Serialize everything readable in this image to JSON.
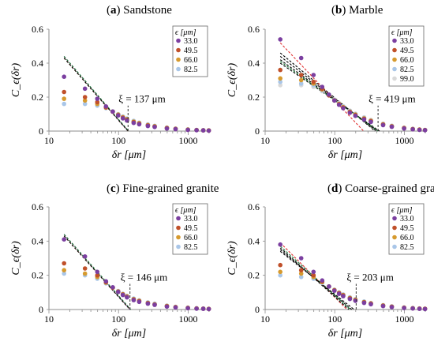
{
  "chart_data": [
    {
      "type": "scatter",
      "panel_label": "a",
      "title": "Sandstone",
      "xlabel": "δr [μm]",
      "ylabel": "C_ϵ(δr)",
      "x_scale": "log",
      "xlim": [
        10,
        2000
      ],
      "ylim": [
        0,
        0.6
      ],
      "x_ticks": [
        "10",
        "100",
        "1000"
      ],
      "y_ticks": [
        "0",
        "0.2",
        "0.4",
        "0.6"
      ],
      "legend_title": "ϵ [μm]",
      "legend_position": "top-right",
      "grid": false,
      "xi_label": "ξ = 137 μm",
      "xi": 137,
      "series": [
        {
          "name": "33.0",
          "color": "#7B3FA0",
          "x": [
            16.5,
            33,
            49.5,
            66,
            82.5,
            99,
            115.5,
            132,
            165,
            198,
            264,
            330,
            495,
            660,
            990,
            1320,
            1650,
            1980
          ],
          "y": [
            0.32,
            0.25,
            0.19,
            0.145,
            0.115,
            0.092,
            0.075,
            0.062,
            0.048,
            0.04,
            0.03,
            0.024,
            0.015,
            0.011,
            0.007,
            0.005,
            0.004,
            0.003
          ]
        },
        {
          "name": "49.5",
          "color": "#C0502A",
          "x": [
            16.5,
            33,
            49.5,
            66,
            82.5,
            99,
            115.5,
            132,
            165,
            198,
            264,
            330,
            495,
            660,
            990,
            1320,
            1650,
            1980
          ],
          "y": [
            0.23,
            0.2,
            0.17,
            0.14,
            0.114,
            0.094,
            0.078,
            0.066,
            0.052,
            0.043,
            0.033,
            0.026,
            0.017,
            0.012,
            0.008,
            0.006,
            0.004,
            0.003
          ]
        },
        {
          "name": "66.0",
          "color": "#D69A2E",
          "x": [
            16.5,
            33,
            49.5,
            66,
            82.5,
            99,
            115.5,
            132,
            165,
            198,
            264,
            330,
            495,
            660,
            990,
            1320,
            1650,
            1980
          ],
          "y": [
            0.19,
            0.18,
            0.16,
            0.138,
            0.115,
            0.097,
            0.082,
            0.07,
            0.056,
            0.047,
            0.036,
            0.029,
            0.019,
            0.014,
            0.009,
            0.006,
            0.005,
            0.004
          ]
        },
        {
          "name": "82.5",
          "color": "#A9C6E8",
          "x": [
            16.5,
            33,
            49.5,
            66,
            82.5,
            99,
            115.5,
            132,
            165,
            198,
            264,
            330,
            495,
            660,
            990,
            1320,
            1650,
            1980
          ],
          "y": [
            0.16,
            0.16,
            0.15,
            0.135,
            0.116,
            0.1,
            0.086,
            0.074,
            0.06,
            0.05,
            0.039,
            0.031,
            0.021,
            0.015,
            0.01,
            0.007,
            0.005,
            0.004
          ]
        }
      ],
      "fit_lines": [
        {
          "color": "#7B3FA0",
          "x": [
            16.5,
            137
          ],
          "y": [
            0.44,
            0.0
          ]
        },
        {
          "color": "#C0502A",
          "x": [
            16.5,
            137
          ],
          "y": [
            0.43,
            0.0
          ]
        },
        {
          "color": "#1F7A3A",
          "x": [
            16.5,
            140
          ],
          "y": [
            0.44,
            0.0
          ]
        },
        {
          "color": "#000000",
          "x": [
            16.5,
            137
          ],
          "y": [
            0.43,
            0.0
          ]
        }
      ]
    },
    {
      "type": "scatter",
      "panel_label": "b",
      "title": "Marble",
      "xlabel": "δr [μm]",
      "ylabel": "C_ϵ(δr)",
      "x_scale": "log",
      "xlim": [
        10,
        2000
      ],
      "ylim": [
        0,
        0.6
      ],
      "x_ticks": [
        "10",
        "100",
        "1000"
      ],
      "y_ticks": [
        "0",
        "0.2",
        "0.4",
        "0.6"
      ],
      "legend_title": "ϵ [μm]",
      "legend_position": "top-right",
      "grid": false,
      "xi_label": "ξ = 419 μm",
      "xi": 419,
      "series": [
        {
          "name": "33.0",
          "color": "#7B3FA0",
          "x": [
            16.5,
            33,
            49.5,
            66,
            82.5,
            99,
            115.5,
            132,
            165,
            198,
            264,
            330,
            495,
            660,
            990,
            1320,
            1650,
            1980
          ],
          "y": [
            0.54,
            0.43,
            0.33,
            0.26,
            0.215,
            0.18,
            0.155,
            0.135,
            0.108,
            0.09,
            0.068,
            0.054,
            0.035,
            0.025,
            0.015,
            0.01,
            0.007,
            0.005
          ]
        },
        {
          "name": "49.5",
          "color": "#C0502A",
          "x": [
            16.5,
            33,
            49.5,
            66,
            82.5,
            99,
            115.5,
            132,
            165,
            198,
            264,
            330,
            495,
            660,
            990,
            1320,
            1650,
            1980
          ],
          "y": [
            0.36,
            0.33,
            0.29,
            0.25,
            0.21,
            0.18,
            0.157,
            0.138,
            0.112,
            0.094,
            0.072,
            0.058,
            0.038,
            0.027,
            0.017,
            0.011,
            0.008,
            0.006
          ]
        },
        {
          "name": "66.0",
          "color": "#D69A2E",
          "x": [
            16.5,
            33,
            49.5,
            66,
            82.5,
            99,
            115.5,
            132,
            165,
            198,
            264,
            330,
            495,
            660,
            990,
            1320,
            1650,
            1980
          ],
          "y": [
            0.31,
            0.3,
            0.28,
            0.245,
            0.21,
            0.182,
            0.16,
            0.141,
            0.115,
            0.097,
            0.075,
            0.061,
            0.04,
            0.029,
            0.018,
            0.012,
            0.009,
            0.006
          ]
        },
        {
          "name": "82.5",
          "color": "#A9C6E8",
          "x": [
            16.5,
            33,
            49.5,
            66,
            82.5,
            99,
            115.5,
            132,
            165,
            198,
            264,
            330,
            495,
            660,
            990,
            1320,
            1650,
            1980
          ],
          "y": [
            0.29,
            0.28,
            0.27,
            0.24,
            0.21,
            0.184,
            0.162,
            0.144,
            0.118,
            0.1,
            0.078,
            0.063,
            0.042,
            0.03,
            0.019,
            0.013,
            0.009,
            0.007
          ]
        },
        {
          "name": "99.0",
          "color": "#D9D9D9",
          "x": [
            16.5,
            33,
            49.5,
            66,
            82.5,
            99,
            115.5,
            132,
            165,
            198,
            264,
            330,
            495,
            660,
            990,
            1320,
            1650,
            1980
          ],
          "y": [
            0.27,
            0.27,
            0.26,
            0.235,
            0.21,
            0.186,
            0.165,
            0.147,
            0.121,
            0.103,
            0.081,
            0.066,
            0.044,
            0.032,
            0.02,
            0.014,
            0.01,
            0.007
          ]
        }
      ],
      "fit_lines": [
        {
          "color": "#E03030",
          "x": [
            16.5,
            260
          ],
          "y": [
            0.52,
            0.0
          ]
        },
        {
          "color": "#000000",
          "x": [
            16.5,
            380
          ],
          "y": [
            0.46,
            0.0
          ]
        },
        {
          "color": "#000000",
          "x": [
            16.5,
            400
          ],
          "y": [
            0.44,
            0.0
          ]
        },
        {
          "color": "#000000",
          "x": [
            16.5,
            420
          ],
          "y": [
            0.42,
            0.0
          ]
        },
        {
          "color": "#000000",
          "x": [
            16.5,
            440
          ],
          "y": [
            0.4,
            0.0
          ]
        },
        {
          "color": "#1F7A3A",
          "x": [
            16.5,
            419
          ],
          "y": [
            0.41,
            0.0
          ]
        }
      ]
    },
    {
      "type": "scatter",
      "panel_label": "c",
      "title": "Fine-grained granite",
      "xlabel": "δr [μm]",
      "ylabel": "C_ϵ(δr)",
      "x_scale": "log",
      "xlim": [
        10,
        2000
      ],
      "ylim": [
        0,
        0.6
      ],
      "x_ticks": [
        "10",
        "100",
        "1000"
      ],
      "y_ticks": [
        "0",
        "0.2",
        "0.4",
        "0.6"
      ],
      "legend_title": "ϵ [μm]",
      "legend_position": "top-right",
      "grid": false,
      "xi_label": "ξ = 146 μm",
      "xi": 146,
      "series": [
        {
          "name": "33.0",
          "color": "#7B3FA0",
          "x": [
            16.5,
            33,
            49.5,
            66,
            82.5,
            99,
            115.5,
            132,
            165,
            198,
            264,
            330,
            495,
            660,
            990,
            1320,
            1650,
            1980
          ],
          "y": [
            0.41,
            0.31,
            0.22,
            0.165,
            0.13,
            0.103,
            0.085,
            0.071,
            0.055,
            0.045,
            0.034,
            0.027,
            0.017,
            0.012,
            0.008,
            0.005,
            0.004,
            0.003
          ]
        },
        {
          "name": "49.5",
          "color": "#C0502A",
          "x": [
            16.5,
            33,
            49.5,
            66,
            82.5,
            99,
            115.5,
            132,
            165,
            198,
            264,
            330,
            495,
            660,
            990,
            1320,
            1650,
            1980
          ],
          "y": [
            0.27,
            0.24,
            0.2,
            0.16,
            0.128,
            0.104,
            0.087,
            0.074,
            0.058,
            0.048,
            0.037,
            0.029,
            0.019,
            0.014,
            0.009,
            0.006,
            0.005,
            0.003
          ]
        },
        {
          "name": "66.0",
          "color": "#D69A2E",
          "x": [
            16.5,
            33,
            49.5,
            66,
            82.5,
            99,
            115.5,
            132,
            165,
            198,
            264,
            330,
            495,
            660,
            990,
            1320,
            1650,
            1980
          ],
          "y": [
            0.23,
            0.21,
            0.19,
            0.157,
            0.128,
            0.106,
            0.09,
            0.077,
            0.061,
            0.051,
            0.039,
            0.031,
            0.021,
            0.015,
            0.01,
            0.007,
            0.005,
            0.004
          ]
        },
        {
          "name": "82.5",
          "color": "#A9C6E8",
          "x": [
            16.5,
            33,
            49.5,
            66,
            82.5,
            99,
            115.5,
            132,
            165,
            198,
            264,
            330,
            495,
            660,
            990,
            1320,
            1650,
            1980
          ],
          "y": [
            0.21,
            0.2,
            0.18,
            0.153,
            0.128,
            0.108,
            0.092,
            0.08,
            0.064,
            0.054,
            0.042,
            0.034,
            0.023,
            0.016,
            0.011,
            0.008,
            0.006,
            0.004
          ]
        }
      ],
      "fit_lines": [
        {
          "color": "#7B3FA0",
          "x": [
            16.5,
            146
          ],
          "y": [
            0.44,
            0.0
          ]
        },
        {
          "color": "#C0502A",
          "x": [
            16.5,
            146
          ],
          "y": [
            0.43,
            0.0
          ]
        },
        {
          "color": "#1F7A3A",
          "x": [
            16.5,
            150
          ],
          "y": [
            0.44,
            0.0
          ]
        },
        {
          "color": "#000000",
          "x": [
            16.5,
            146
          ],
          "y": [
            0.43,
            0.0
          ]
        }
      ]
    },
    {
      "type": "scatter",
      "panel_label": "d",
      "title": "Coarse-grained granite",
      "xlabel": "δr [μm]",
      "ylabel": "C_ϵ(δr)",
      "x_scale": "log",
      "xlim": [
        10,
        2000
      ],
      "ylim": [
        0,
        0.6
      ],
      "x_ticks": [
        "10",
        "100",
        "1000"
      ],
      "y_ticks": [
        "0",
        "0.2",
        "0.4",
        "0.6"
      ],
      "legend_title": "ϵ [μm]",
      "legend_position": "top-right",
      "grid": false,
      "xi_label": "ξ = 203 μm",
      "xi": 203,
      "series": [
        {
          "name": "33.0",
          "color": "#7B3FA0",
          "x": [
            16.5,
            33,
            49.5,
            66,
            82.5,
            99,
            115.5,
            132,
            165,
            198,
            264,
            330,
            495,
            660,
            990,
            1320,
            1650,
            1980
          ],
          "y": [
            0.38,
            0.3,
            0.22,
            0.17,
            0.135,
            0.11,
            0.092,
            0.078,
            0.062,
            0.051,
            0.039,
            0.031,
            0.02,
            0.014,
            0.009,
            0.006,
            0.004,
            0.003
          ]
        },
        {
          "name": "49.5",
          "color": "#C0502A",
          "x": [
            16.5,
            33,
            49.5,
            66,
            82.5,
            99,
            115.5,
            132,
            165,
            198,
            264,
            330,
            495,
            660,
            990,
            1320,
            1650,
            1980
          ],
          "y": [
            0.26,
            0.23,
            0.2,
            0.165,
            0.135,
            0.112,
            0.095,
            0.082,
            0.065,
            0.054,
            0.042,
            0.034,
            0.022,
            0.016,
            0.01,
            0.007,
            0.005,
            0.004
          ]
        },
        {
          "name": "66.0",
          "color": "#D69A2E",
          "x": [
            16.5,
            33,
            49.5,
            66,
            82.5,
            99,
            115.5,
            132,
            165,
            198,
            264,
            330,
            495,
            660,
            990,
            1320,
            1650,
            1980
          ],
          "y": [
            0.22,
            0.21,
            0.19,
            0.16,
            0.135,
            0.114,
            0.098,
            0.085,
            0.068,
            0.057,
            0.044,
            0.036,
            0.024,
            0.017,
            0.011,
            0.008,
            0.006,
            0.004
          ]
        },
        {
          "name": "82.5",
          "color": "#A9C6E8",
          "x": [
            16.5,
            33,
            49.5,
            66,
            82.5,
            99,
            115.5,
            132,
            165,
            198,
            264,
            330,
            495,
            660,
            990,
            1320,
            1650,
            1980
          ],
          "y": [
            0.2,
            0.19,
            0.18,
            0.155,
            0.134,
            0.116,
            0.1,
            0.088,
            0.071,
            0.06,
            0.047,
            0.038,
            0.026,
            0.019,
            0.012,
            0.009,
            0.006,
            0.005
          ]
        }
      ],
      "fit_lines": [
        {
          "color": "#E03030",
          "x": [
            16.5,
            150
          ],
          "y": [
            0.39,
            0.0
          ]
        },
        {
          "color": "#000000",
          "x": [
            16.5,
            160
          ],
          "y": [
            0.36,
            0.0
          ]
        },
        {
          "color": "#000000",
          "x": [
            16.5,
            175
          ],
          "y": [
            0.35,
            0.0
          ]
        },
        {
          "color": "#1F7A3A",
          "x": [
            16.5,
            168
          ],
          "y": [
            0.37,
            0.0
          ]
        },
        {
          "color": "#000000",
          "x": [
            16.5,
            190
          ],
          "y": [
            0.34,
            0.0
          ]
        }
      ]
    }
  ]
}
